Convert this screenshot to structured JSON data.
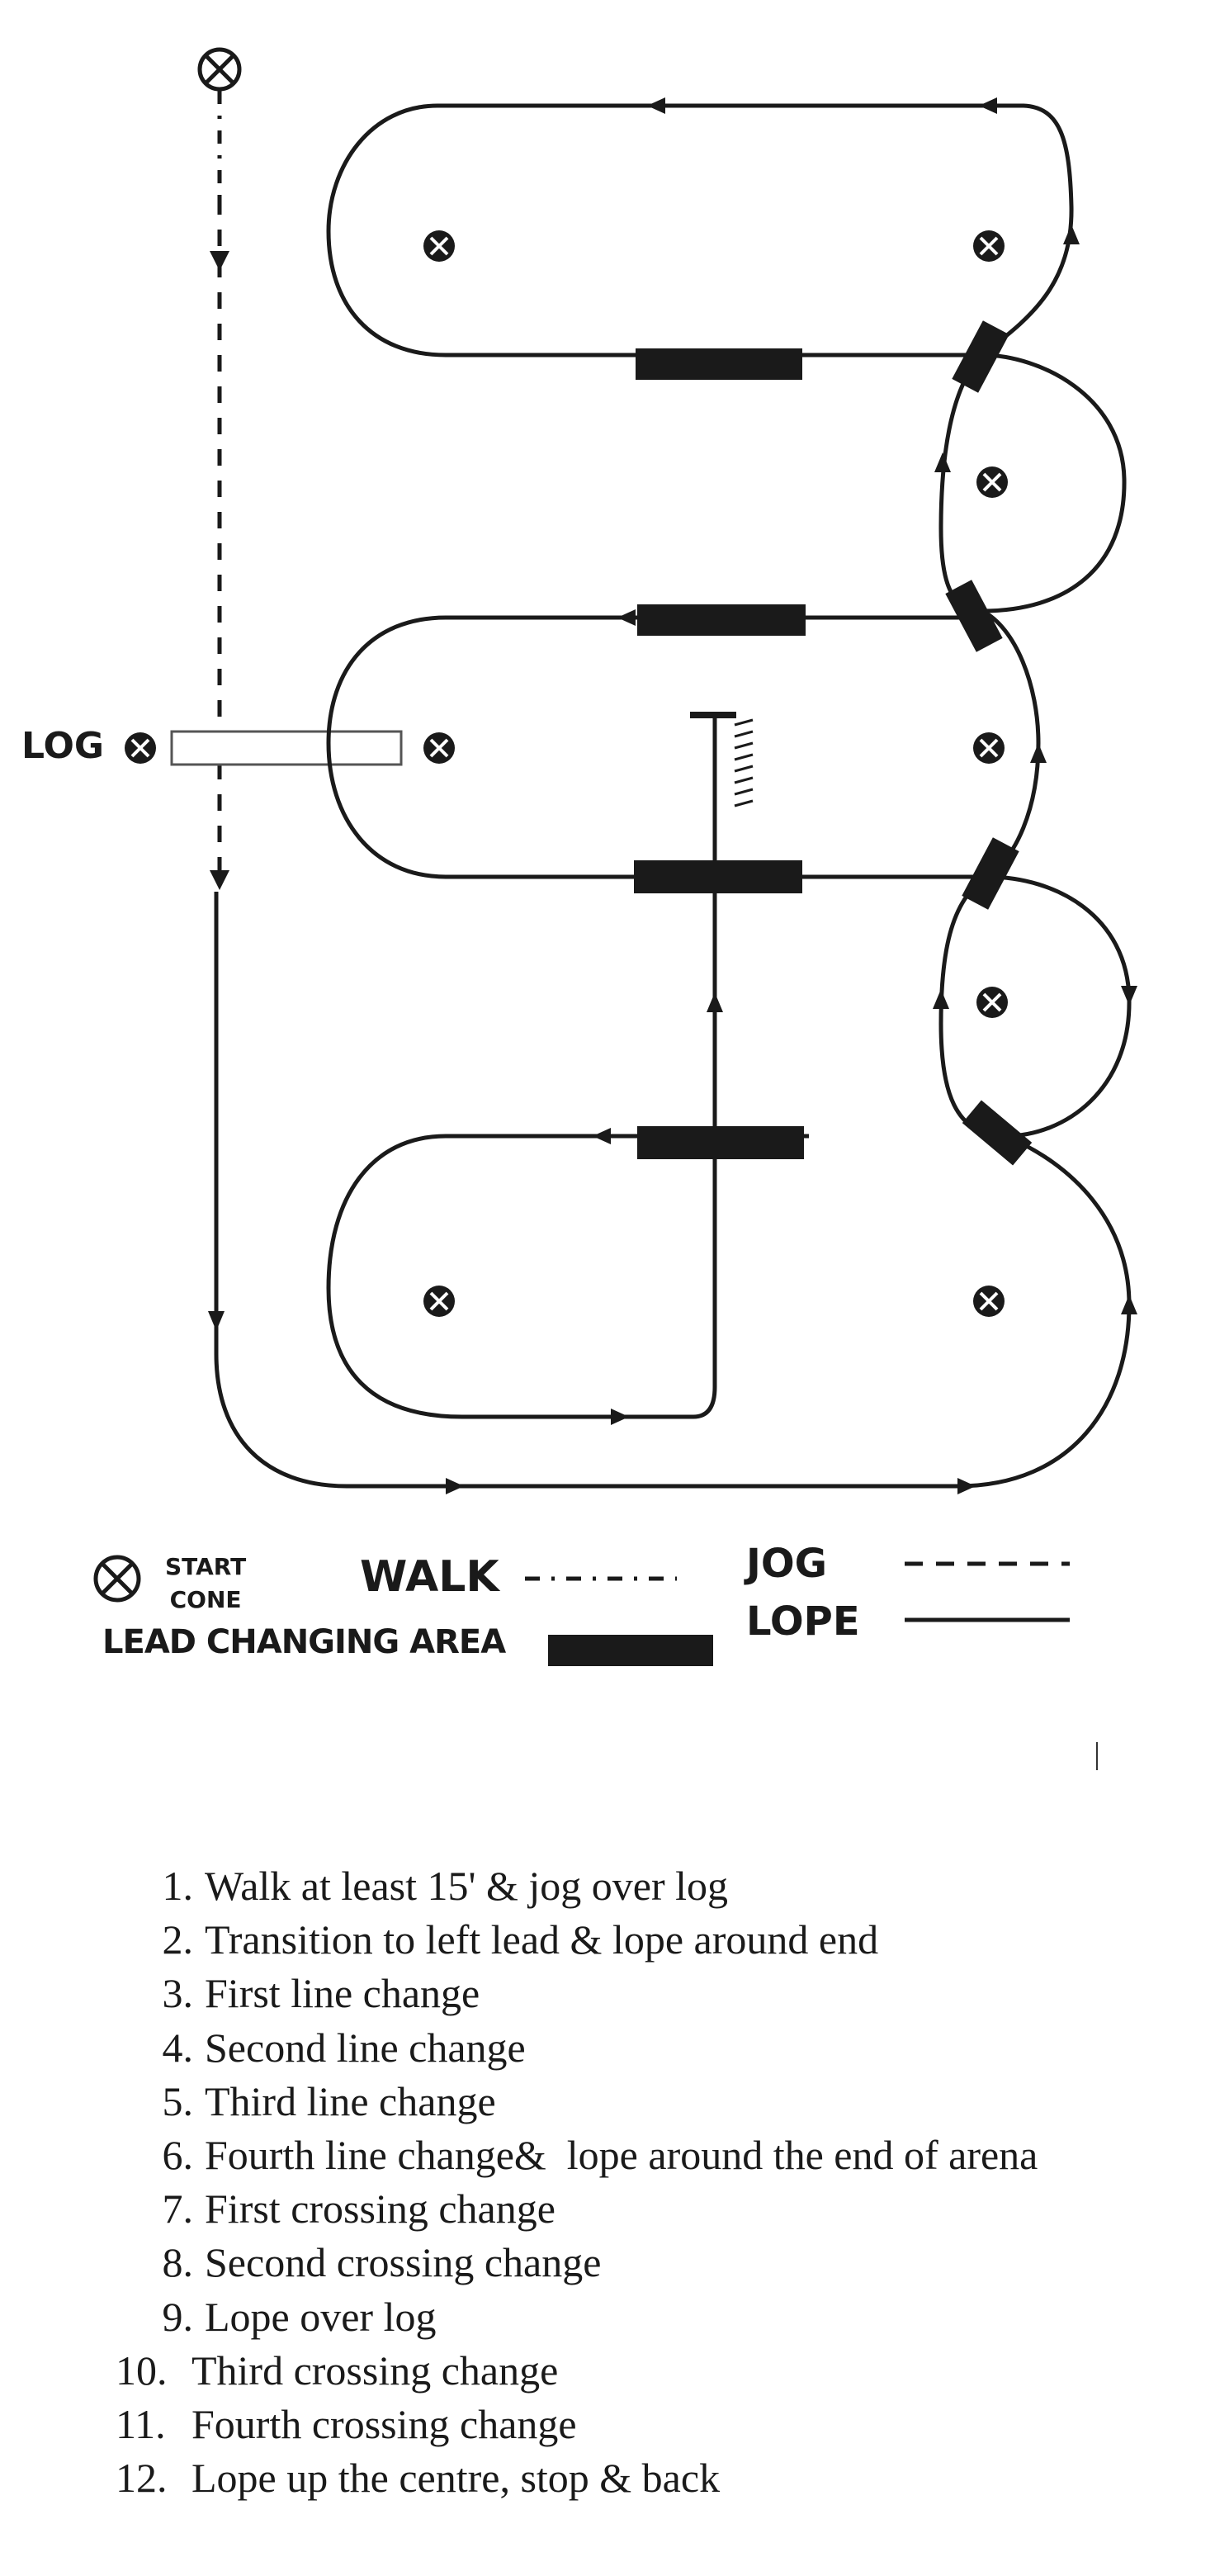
{
  "diagram": {
    "log_label": "LOG",
    "legend": {
      "start_label_line1": "START",
      "start_label_line2": "CONE",
      "walk_label": "WALK",
      "jog_label": "JOG",
      "lope_label": "LOPE",
      "lead_changing_label": "LEAD CHANGING AREA"
    }
  },
  "steps": [
    {
      "num": "1.",
      "text": "Walk at least 15' & jog over log"
    },
    {
      "num": "2.",
      "text": "Transition to left lead & lope around end"
    },
    {
      "num": "3.",
      "text": "First line change"
    },
    {
      "num": "4.",
      "text": "Second line change"
    },
    {
      "num": "5.",
      "text": "Third line change"
    },
    {
      "num": "6.",
      "text": "Fourth line change&  lope around the end of arena"
    },
    {
      "num": "7.",
      "text": "First crossing change"
    },
    {
      "num": "8.",
      "text": "Second crossing change"
    },
    {
      "num": "9.",
      "text": "Lope over log"
    },
    {
      "num": "10.",
      "text": "Third crossing change"
    },
    {
      "num": "11.",
      "text": "Fourth crossing change"
    },
    {
      "num": "12.",
      "text": "Lope up the centre, stop & back"
    }
  ]
}
